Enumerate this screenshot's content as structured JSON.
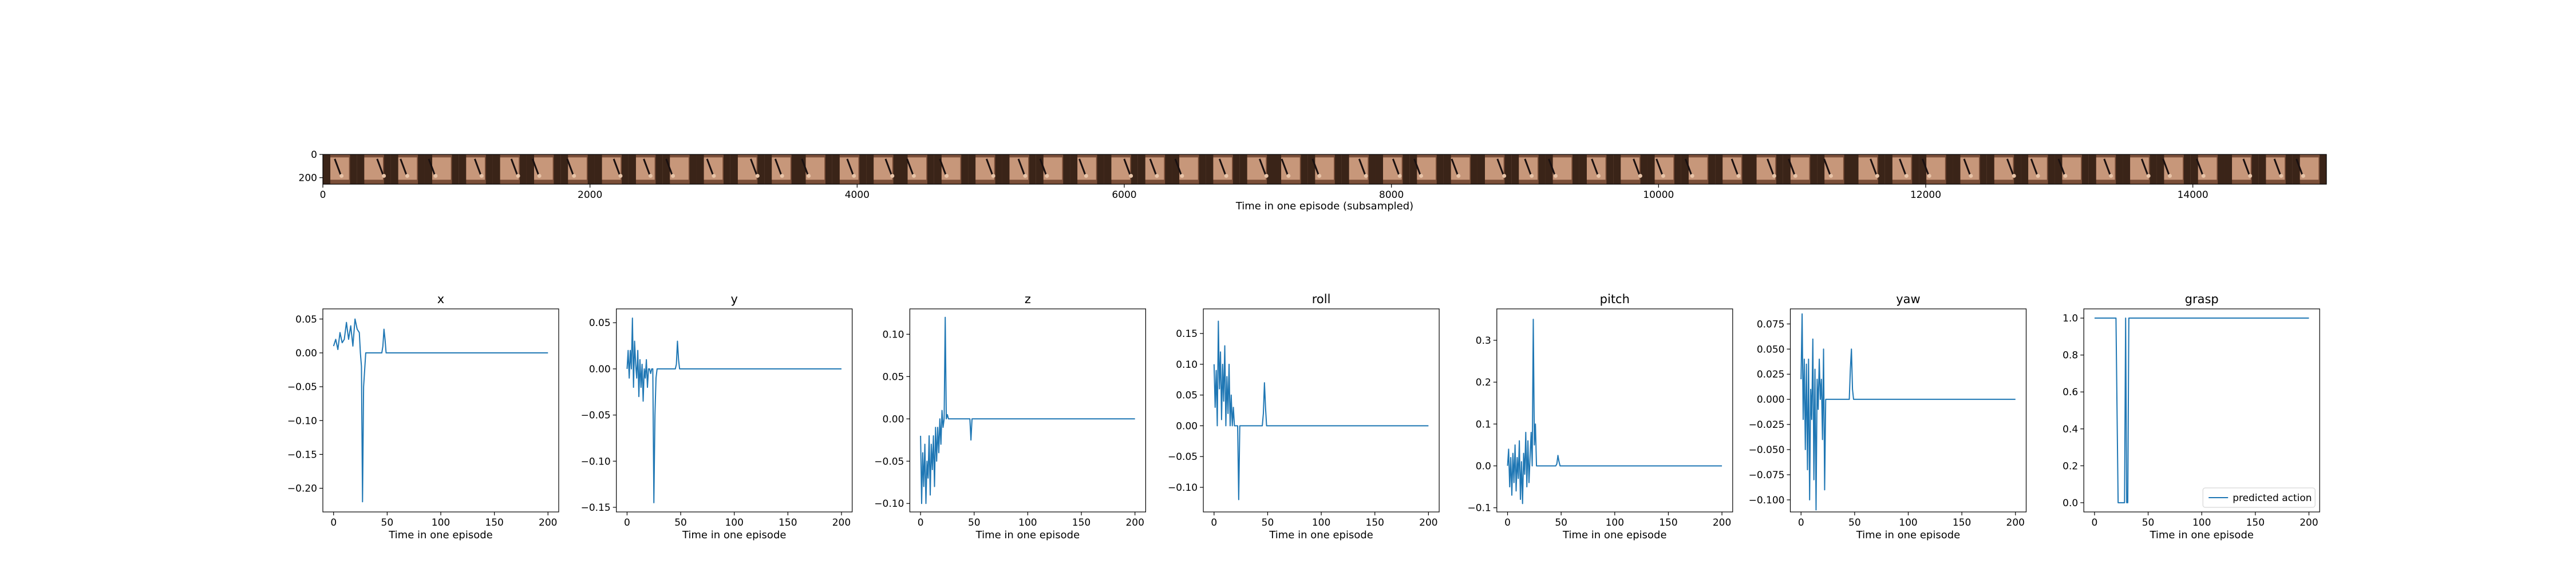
{
  "figure": {
    "top_strip": {
      "xlabel": "Time in one episode (subsampled)",
      "xticks": [
        0,
        2000,
        4000,
        6000,
        8000,
        10000,
        12000,
        14000
      ],
      "yticks": [
        0,
        200
      ],
      "xlim": [
        0,
        15000
      ],
      "ylim": [
        0,
        256
      ],
      "num_frames": 59,
      "colors": {
        "dark": "#3a2418",
        "mid": "#7a4e38",
        "light": "#c7977a",
        "bright": "#e8c4a8"
      }
    }
  },
  "chart_data": [
    {
      "type": "line",
      "title": "x",
      "xlabel": "Time in one episode",
      "xlim": [
        -10,
        210
      ],
      "ylim": [
        -0.235,
        0.065
      ],
      "xticks": [
        0,
        50,
        100,
        150,
        200
      ],
      "yticks": [
        0.05,
        0.0,
        -0.05,
        -0.1,
        -0.15,
        -0.2
      ],
      "ytick_labels": [
        "0.05",
        "0.00",
        "−0.05",
        "−0.10",
        "−0.15",
        "−0.20"
      ],
      "color": "#1f77b4",
      "x": [
        0,
        2,
        4,
        6,
        8,
        10,
        12,
        14,
        16,
        18,
        20,
        22,
        24,
        25,
        26,
        27,
        28,
        30,
        32,
        34,
        40,
        45,
        46,
        47,
        48,
        49,
        50,
        52,
        60,
        200
      ],
      "y": [
        0.01,
        0.02,
        0.005,
        0.03,
        0.015,
        0.02,
        0.045,
        0.02,
        0.04,
        0.01,
        0.05,
        0.035,
        0.03,
        0.0,
        -0.02,
        -0.22,
        -0.05,
        0.0,
        0.0,
        0.0,
        0.0,
        0.0,
        0.01,
        0.035,
        0.02,
        0.0,
        0.0,
        0.0,
        0.0,
        0.0
      ]
    },
    {
      "type": "line",
      "title": "y",
      "xlabel": "Time in one episode",
      "xlim": [
        -10,
        210
      ],
      "ylim": [
        -0.155,
        0.065
      ],
      "xticks": [
        0,
        50,
        100,
        150,
        200
      ],
      "yticks": [
        0.05,
        0.0,
        -0.05,
        -0.1,
        -0.15
      ],
      "ytick_labels": [
        "0.05",
        "0.00",
        "−0.05",
        "−0.10",
        "−0.15"
      ],
      "color": "#1f77b4",
      "x": [
        0,
        1,
        2,
        3,
        4,
        5,
        6,
        7,
        8,
        9,
        10,
        11,
        12,
        13,
        14,
        15,
        16,
        17,
        18,
        19,
        20,
        21,
        22,
        23,
        24,
        25,
        26,
        27,
        28,
        30,
        40,
        45,
        46,
        47,
        48,
        49,
        50,
        60,
        200
      ],
      "y": [
        0.0,
        0.02,
        -0.01,
        0.02,
        0.0,
        0.055,
        -0.02,
        0.03,
        0.005,
        -0.01,
        0.02,
        -0.03,
        0.01,
        -0.02,
        0.005,
        -0.035,
        0.0,
        -0.01,
        0.01,
        -0.02,
        0.0,
        0.0,
        -0.005,
        0.0,
        0.0,
        -0.145,
        -0.05,
        -0.01,
        0.0,
        0.0,
        0.0,
        0.0,
        0.005,
        0.03,
        0.01,
        0.0,
        0.0,
        0.0,
        0.0
      ]
    },
    {
      "type": "line",
      "title": "z",
      "xlabel": "Time in one episode",
      "xlim": [
        -10,
        210
      ],
      "ylim": [
        -0.11,
        0.13
      ],
      "xticks": [
        0,
        50,
        100,
        150,
        200
      ],
      "yticks": [
        0.1,
        0.05,
        0.0,
        -0.05,
        -0.1
      ],
      "ytick_labels": [
        "0.10",
        "0.05",
        "0.00",
        "−0.05",
        "−0.10"
      ],
      "color": "#1f77b4",
      "x": [
        0,
        1,
        2,
        3,
        4,
        5,
        6,
        7,
        8,
        9,
        10,
        11,
        12,
        13,
        14,
        15,
        16,
        17,
        18,
        19,
        20,
        21,
        22,
        23,
        24,
        25,
        26,
        27,
        28,
        29,
        30,
        40,
        45,
        46,
        47,
        48,
        49,
        50,
        60,
        200
      ],
      "y": [
        -0.02,
        -0.1,
        -0.04,
        -0.08,
        -0.03,
        -0.1,
        -0.05,
        -0.07,
        -0.02,
        -0.09,
        -0.03,
        -0.06,
        -0.02,
        -0.08,
        -0.01,
        -0.05,
        -0.01,
        -0.04,
        0.0,
        -0.03,
        0.01,
        -0.01,
        0.0,
        0.12,
        0.0,
        0.005,
        0.0,
        0.0,
        0.0,
        0.0,
        0.0,
        0.0,
        0.0,
        0.0,
        -0.025,
        0.0,
        0.0,
        0.0,
        0.0,
        0.0
      ]
    },
    {
      "type": "line",
      "title": "roll",
      "xlabel": "Time in one episode",
      "xlim": [
        -10,
        210
      ],
      "ylim": [
        -0.14,
        0.19
      ],
      "xticks": [
        0,
        50,
        100,
        150,
        200
      ],
      "yticks": [
        0.15,
        0.1,
        0.05,
        0.0,
        -0.05,
        -0.1
      ],
      "ytick_labels": [
        "0.15",
        "0.10",
        "0.05",
        "0.00",
        "−0.05",
        "−0.10"
      ],
      "color": "#1f77b4",
      "x": [
        0,
        1,
        2,
        3,
        4,
        5,
        6,
        7,
        8,
        9,
        10,
        11,
        12,
        13,
        14,
        15,
        16,
        17,
        18,
        19,
        20,
        21,
        22,
        23,
        24,
        25,
        26,
        27,
        28,
        30,
        40,
        45,
        46,
        47,
        48,
        49,
        50,
        60,
        200
      ],
      "y": [
        0.1,
        0.03,
        0.09,
        0.0,
        0.17,
        0.06,
        0.12,
        0.01,
        0.1,
        0.04,
        0.13,
        0.0,
        0.08,
        0.02,
        0.1,
        0.0,
        0.05,
        0.0,
        0.03,
        0.0,
        0.0,
        0.0,
        0.0,
        -0.12,
        0.0,
        0.0,
        0.0,
        0.0,
        0.0,
        0.0,
        0.0,
        0.0,
        0.02,
        0.07,
        0.03,
        0.0,
        0.0,
        0.0,
        0.0
      ]
    },
    {
      "type": "line",
      "title": "pitch",
      "xlabel": "Time in one episode",
      "xlim": [
        -10,
        210
      ],
      "ylim": [
        -0.11,
        0.375
      ],
      "xticks": [
        0,
        50,
        100,
        150,
        200
      ],
      "yticks": [
        0.3,
        0.2,
        0.1,
        0.0,
        -0.1
      ],
      "ytick_labels": [
        "0.3",
        "0.2",
        "0.1",
        "0.0",
        "−0.1"
      ],
      "color": "#1f77b4",
      "x": [
        0,
        1,
        2,
        3,
        4,
        5,
        6,
        7,
        8,
        9,
        10,
        11,
        12,
        13,
        14,
        15,
        16,
        17,
        18,
        19,
        20,
        21,
        22,
        23,
        24,
        25,
        26,
        27,
        28,
        29,
        30,
        31,
        32,
        40,
        45,
        46,
        47,
        48,
        49,
        50,
        60,
        200
      ],
      "y": [
        0.0,
        0.04,
        -0.05,
        0.02,
        -0.07,
        0.03,
        -0.04,
        0.05,
        -0.06,
        0.02,
        -0.03,
        0.06,
        -0.08,
        0.01,
        -0.09,
        0.03,
        -0.02,
        0.08,
        -0.05,
        0.06,
        -0.04,
        0.02,
        0.08,
        0.0,
        0.35,
        0.05,
        0.1,
        0.0,
        0.0,
        0.0,
        0.0,
        0.0,
        0.0,
        0.0,
        0.0,
        0.005,
        0.025,
        0.01,
        0.0,
        0.0,
        0.0,
        0.0
      ]
    },
    {
      "type": "line",
      "title": "yaw",
      "xlabel": "Time in one episode",
      "xlim": [
        -10,
        210
      ],
      "ylim": [
        -0.112,
        0.09
      ],
      "xticks": [
        0,
        50,
        100,
        150,
        200
      ],
      "yticks": [
        0.075,
        0.05,
        0.025,
        0.0,
        -0.025,
        -0.05,
        -0.075,
        -0.1
      ],
      "ytick_labels": [
        "0.075",
        "0.050",
        "0.025",
        "0.000",
        "−0.025",
        "−0.050",
        "−0.075",
        "−0.100"
      ],
      "color": "#1f77b4",
      "x": [
        0,
        1,
        2,
        3,
        4,
        5,
        6,
        7,
        8,
        9,
        10,
        11,
        12,
        13,
        14,
        15,
        16,
        17,
        18,
        19,
        20,
        21,
        22,
        23,
        24,
        25,
        26,
        27,
        28,
        29,
        30,
        31,
        32,
        33,
        40,
        45,
        46,
        47,
        48,
        49,
        50,
        60,
        200
      ],
      "y": [
        0.02,
        0.085,
        -0.02,
        0.04,
        -0.05,
        0.035,
        -0.07,
        0.04,
        -0.1,
        0.01,
        -0.02,
        0.06,
        -0.08,
        0.03,
        -0.11,
        0.02,
        -0.01,
        0.04,
        0.0,
        0.02,
        -0.04,
        0.05,
        -0.09,
        0.0,
        0.0,
        0.0,
        0.0,
        0.0,
        0.0,
        0.0,
        0.0,
        0.0,
        0.0,
        0.0,
        0.0,
        0.0,
        0.03,
        0.05,
        0.01,
        0.0,
        0.0,
        0.0,
        0.0
      ]
    },
    {
      "type": "line",
      "title": "grasp",
      "xlabel": "Time in one episode",
      "xlim": [
        -10,
        210
      ],
      "ylim": [
        -0.05,
        1.05
      ],
      "xticks": [
        0,
        50,
        100,
        150,
        200
      ],
      "yticks": [
        1.0,
        0.8,
        0.6,
        0.4,
        0.2,
        0.0
      ],
      "ytick_labels": [
        "1.0",
        "0.8",
        "0.6",
        "0.4",
        "0.2",
        "0.0"
      ],
      "color": "#1f77b4",
      "series_name": "predicted action",
      "legend_position": "lower right",
      "x": [
        0,
        20,
        21,
        22,
        28,
        29,
        30,
        31,
        32,
        33,
        34,
        200
      ],
      "y": [
        1.0,
        1.0,
        0.5,
        0.0,
        0.0,
        1.0,
        0.0,
        0.0,
        1.0,
        1.0,
        1.0,
        1.0
      ]
    }
  ]
}
